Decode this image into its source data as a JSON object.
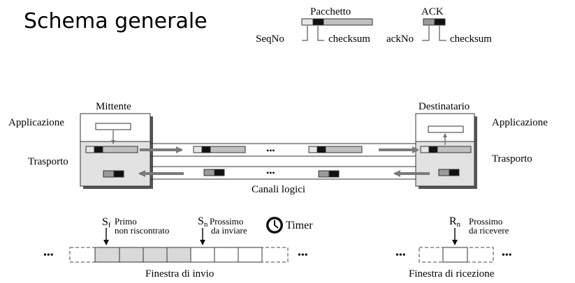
{
  "title": "Schema generale",
  "legend": {
    "packet_label": "Pacchetto",
    "packet_seq_label": "SeqNo",
    "packet_checksum_label": "checksum",
    "ack_label": "ACK",
    "ack_no_label": "ackNo",
    "ack_checksum_label": "checksum"
  },
  "sender": {
    "label": "Mittente",
    "application_label": "Applicazione",
    "transport_label": "Trasporto"
  },
  "receiver": {
    "label": "Destinatario",
    "application_label": "Applicazione",
    "transport_label": "Trasporto"
  },
  "channel": {
    "label": "Canali logici",
    "forward_ellipsis": "•••",
    "backward_ellipsis": "•••"
  },
  "send_window": {
    "sf_symbol": "S",
    "sf_subscript": "f",
    "sf_line1": "Primo",
    "sf_line2": "non riscontrato",
    "sn_symbol": "S",
    "sn_subscript": "n",
    "sn_line1": "Prossimo",
    "sn_line2": "da inviare",
    "timer_label": "Timer",
    "left_ellipsis": "•••",
    "right_ellipsis": "•••",
    "caption": "Finestra di invio"
  },
  "receive_window": {
    "rn_symbol": "R",
    "rn_subscript": "n",
    "rn_line1": "Prossimo",
    "rn_line2": "da ricevere",
    "left_ellipsis": "•••",
    "right_ellipsis": "•••",
    "caption": "Finestra di ricezione"
  },
  "colors": {
    "box_fill": "#e2e2e2",
    "packet_fill": "#c0c0c0",
    "ack_fill": "#9a9a9a",
    "header_fill": "#111111",
    "arrow_fill": "#7a7a7a",
    "outline": "#333333"
  }
}
